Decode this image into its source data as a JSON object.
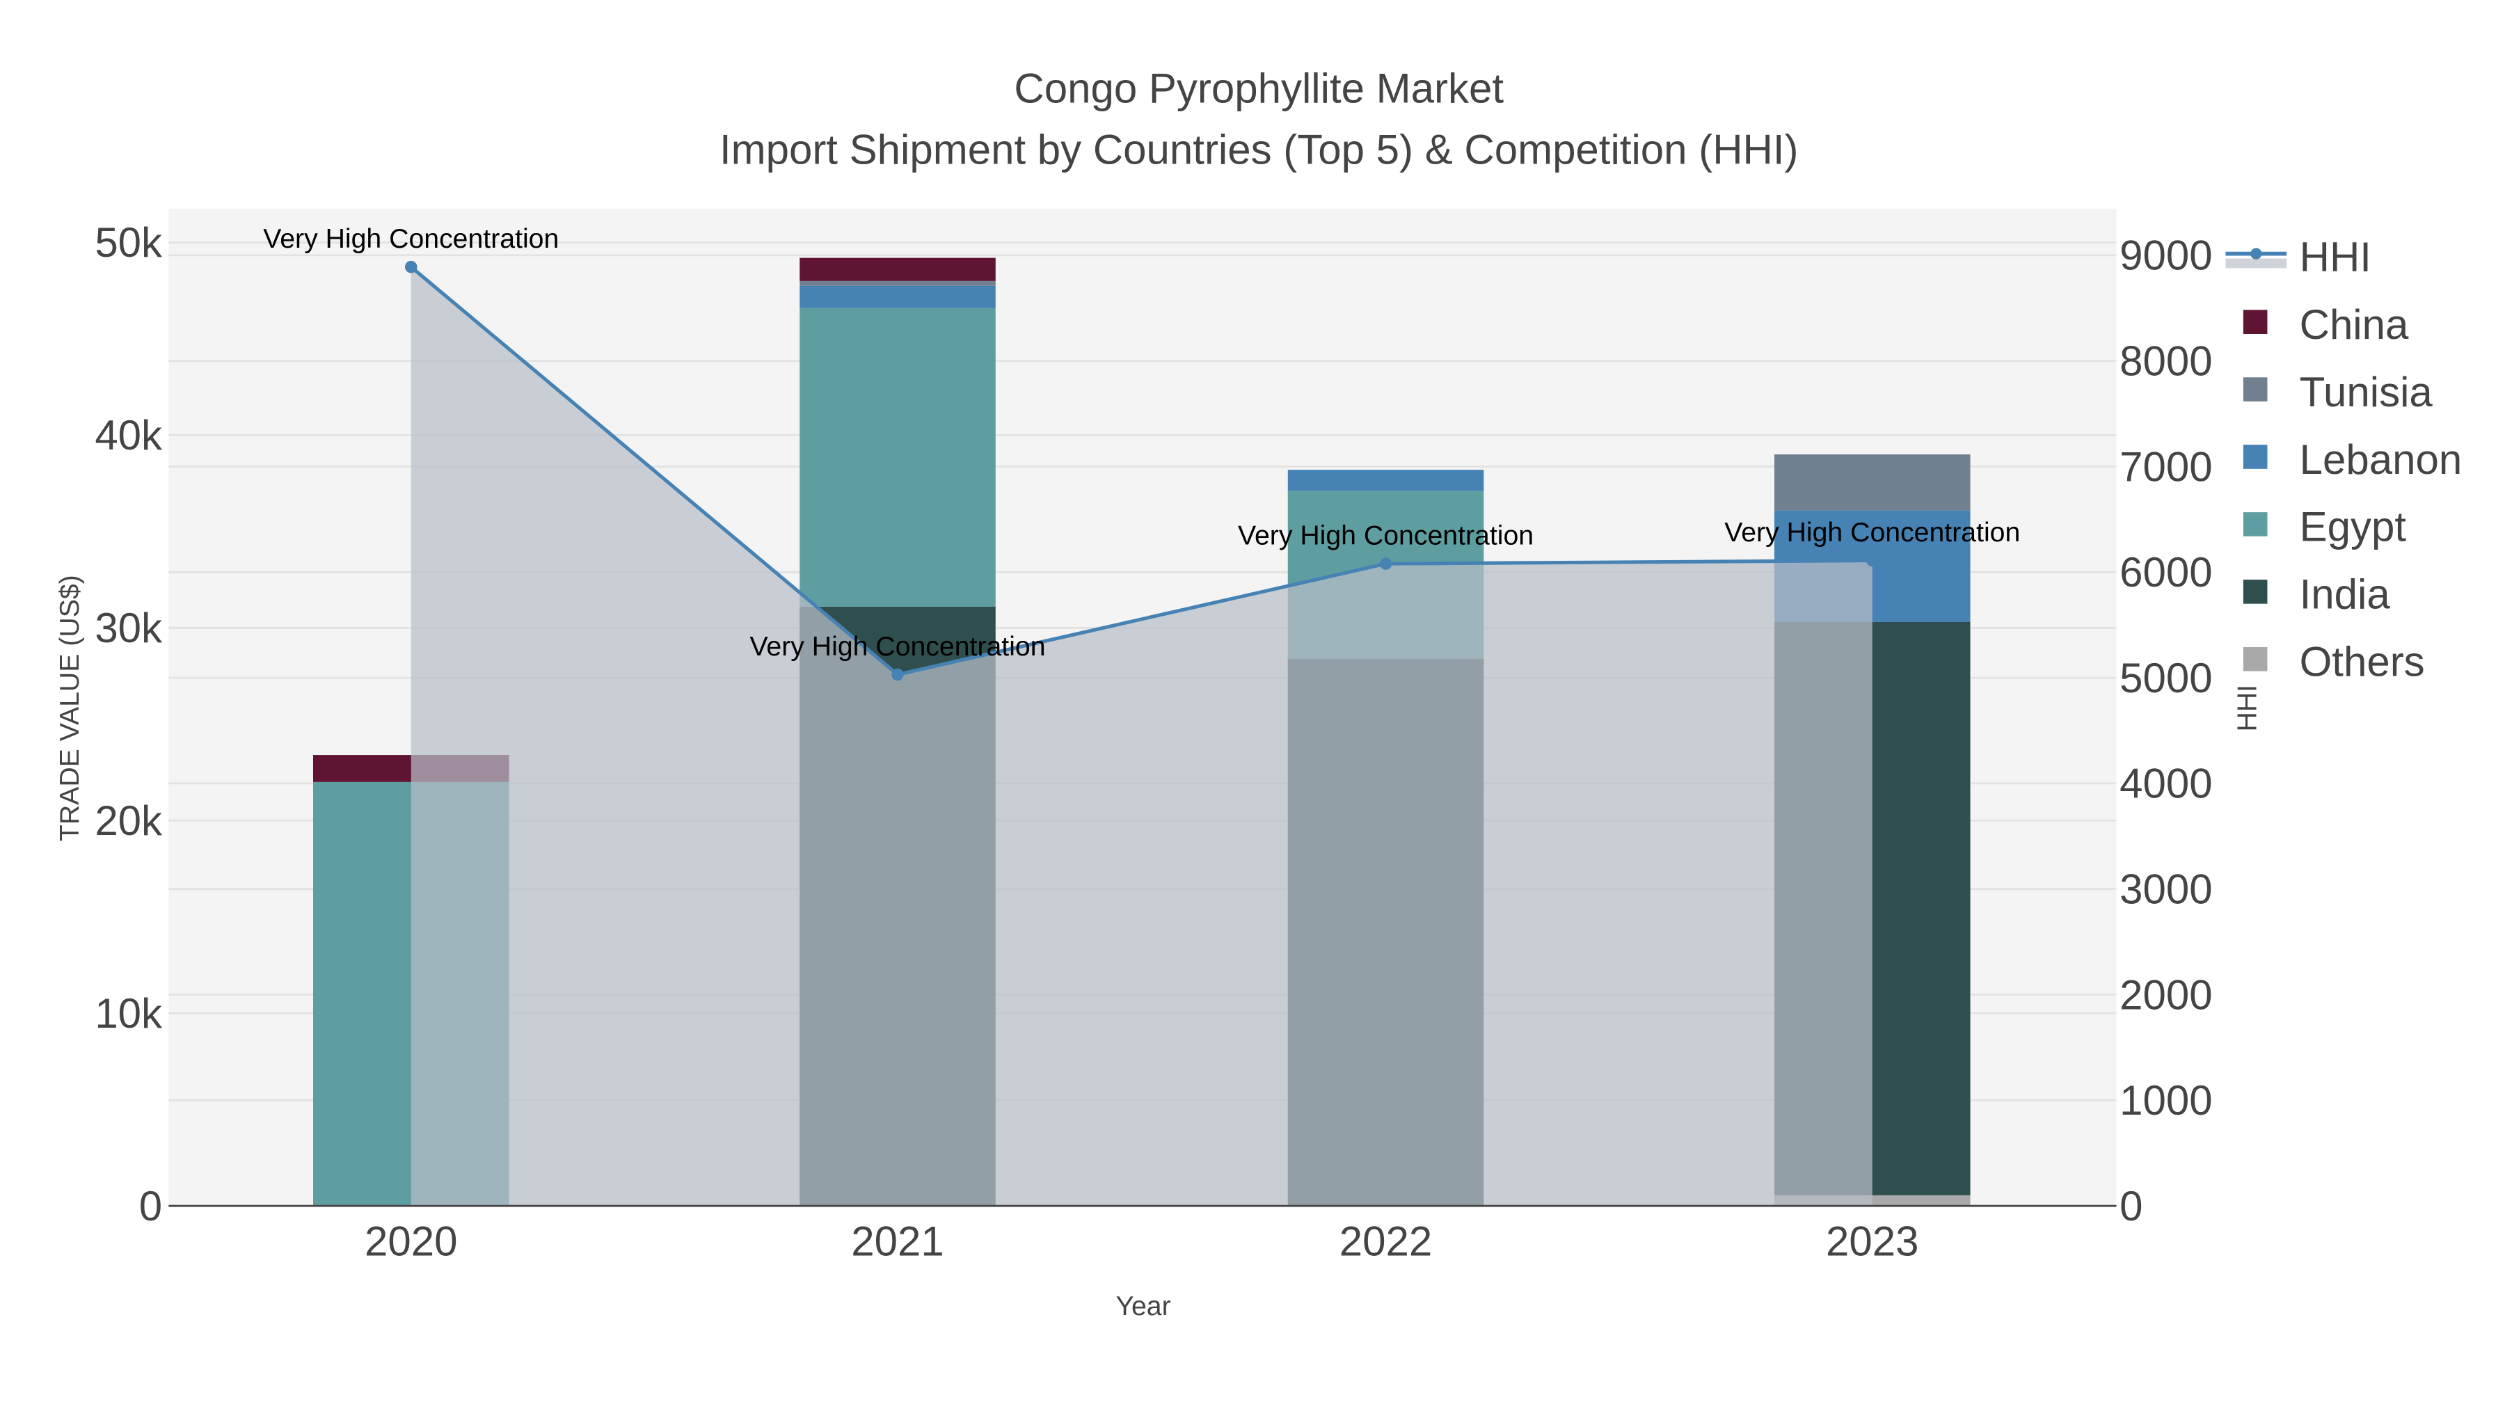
{
  "chart_data": {
    "type": "bar",
    "title": "Congo Pyrophyllite Market",
    "subtitle": "Import Shipment by Countries (Top 5) & Competition (HHI)",
    "xlabel": "Year",
    "ylabel": "TRADE VALUE (US$)",
    "y2label": "HHI",
    "categories": [
      "2020",
      "2021",
      "2022",
      "2023"
    ],
    "ylim": [
      0,
      52000
    ],
    "y2lim": [
      0,
      9450
    ],
    "yticks": [
      0,
      10000,
      20000,
      30000,
      40000,
      50000
    ],
    "ytick_labels": [
      "0",
      "10k",
      "20k",
      "30k",
      "40k",
      "50k"
    ],
    "y2ticks": [
      0,
      1000,
      2000,
      3000,
      4000,
      5000,
      6000,
      7000,
      8000,
      9000
    ],
    "y2tick_labels": [
      "0",
      "1000",
      "2000",
      "3000",
      "4000",
      "5000",
      "6000",
      "7000",
      "8000",
      "9000"
    ],
    "barmode": "stack",
    "series": [
      {
        "name": "Others",
        "color": "#a9a9a9",
        "values": [
          0,
          0,
          0,
          550
        ]
      },
      {
        "name": "India",
        "color": "#2f4f4f",
        "values": [
          0,
          31100,
          28400,
          29750
        ]
      },
      {
        "name": "Egypt",
        "color": "#5f9ea0",
        "values": [
          22000,
          15500,
          8700,
          0
        ]
      },
      {
        "name": "Lebanon",
        "color": "#4682b4",
        "values": [
          0,
          1150,
          1100,
          5800
        ]
      },
      {
        "name": "Tunisia",
        "color": "#708090",
        "values": [
          0,
          250,
          0,
          2900
        ]
      },
      {
        "name": "China",
        "color": "#5f1434",
        "values": [
          1400,
          1200,
          0,
          0
        ]
      }
    ],
    "hhi": {
      "name": "HHI",
      "color": "#4682b4",
      "values": [
        8890,
        5030,
        6080,
        6110
      ]
    },
    "annotations": [
      "Very High Concentration",
      "Very High Concentration",
      "Very High Concentration",
      "Very High Concentration"
    ],
    "legend": {
      "placement": "right",
      "entries": [
        "HHI",
        "China",
        "Tunisia",
        "Lebanon",
        "Egypt",
        "India",
        "Others"
      ]
    },
    "grid": true
  }
}
